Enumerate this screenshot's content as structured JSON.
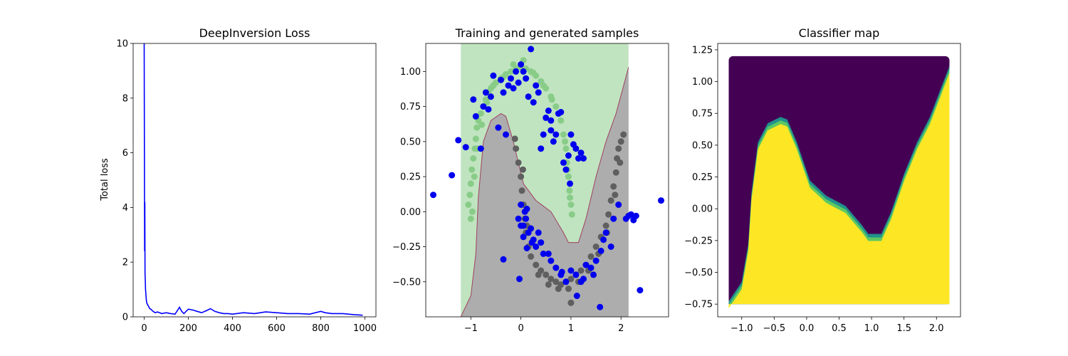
{
  "figure": {
    "background": "#ffffff"
  },
  "chart_data": [
    {
      "type": "line",
      "title": "DeepInversion Loss",
      "xlabel": "",
      "ylabel": "Total loss",
      "xlim": [
        -50,
        1050
      ],
      "ylim": [
        0,
        10
      ],
      "xticks": [
        0,
        200,
        400,
        600,
        800,
        1000
      ],
      "yticks": [
        0,
        2,
        4,
        6,
        8,
        10
      ],
      "grid": false,
      "color": "#0000ff",
      "series": [
        {
          "x": [
            0,
            1,
            2,
            3,
            4,
            5,
            6,
            8,
            10,
            12,
            15,
            20,
            25,
            30,
            40,
            50,
            60,
            80,
            100,
            120,
            140,
            160,
            170,
            180,
            200,
            220,
            240,
            260,
            280,
            300,
            320,
            340,
            360,
            380,
            400,
            450,
            500,
            550,
            600,
            650,
            700,
            750,
            800,
            820,
            850,
            900,
            950,
            990
          ],
          "y": [
            10,
            6.4,
            2.4,
            4.2,
            1.6,
            1.3,
            1.0,
            0.8,
            0.6,
            0.5,
            0.45,
            0.38,
            0.3,
            0.28,
            0.2,
            0.15,
            0.18,
            0.12,
            0.15,
            0.12,
            0.1,
            0.35,
            0.2,
            0.12,
            0.28,
            0.25,
            0.2,
            0.15,
            0.22,
            0.3,
            0.2,
            0.15,
            0.12,
            0.12,
            0.1,
            0.15,
            0.12,
            0.18,
            0.15,
            0.12,
            0.12,
            0.1,
            0.2,
            0.15,
            0.12,
            0.12,
            0.08,
            0.06
          ]
        }
      ]
    },
    {
      "type": "scatter",
      "title": "Training and generated samples",
      "xlabel": "",
      "ylabel": "",
      "xlim": [
        -1.9,
        2.95
      ],
      "ylim": [
        -0.75,
        1.2
      ],
      "xticks": [
        -1,
        0,
        1,
        2
      ],
      "yticks": [
        -0.5,
        -0.25,
        0.0,
        0.25,
        0.5,
        0.75,
        1.0
      ],
      "grid": false,
      "region": {
        "x_range": [
          -1.2,
          2.15
        ],
        "class0_color": "#c0e4c0",
        "class1_color": "#adadad",
        "boundary_color": "#a04060",
        "boundary": [
          [
            -1.2,
            -0.75
          ],
          [
            -1.0,
            -0.6
          ],
          [
            -0.9,
            -0.3
          ],
          [
            -0.85,
            0.1
          ],
          [
            -0.75,
            0.5
          ],
          [
            -0.6,
            0.65
          ],
          [
            -0.4,
            0.7
          ],
          [
            -0.3,
            0.68
          ],
          [
            -0.15,
            0.5
          ],
          [
            0.05,
            0.2
          ],
          [
            0.3,
            0.08
          ],
          [
            0.6,
            0.0
          ],
          [
            0.85,
            -0.15
          ],
          [
            0.95,
            -0.22
          ],
          [
            1.15,
            -0.22
          ],
          [
            1.3,
            -0.05
          ],
          [
            1.5,
            0.25
          ],
          [
            1.7,
            0.5
          ],
          [
            1.9,
            0.7
          ],
          [
            2.15,
            1.03
          ]
        ]
      },
      "series": [
        {
          "name": "",
          "color": "#88cc88",
          "points": [
            [
              -1.05,
              0.05
            ],
            [
              -1.02,
              0.12
            ],
            [
              -1.0,
              0.2
            ],
            [
              -0.98,
              0.3
            ],
            [
              -0.95,
              0.38
            ],
            [
              -0.92,
              0.45
            ],
            [
              -0.9,
              0.52
            ],
            [
              -0.88,
              0.6
            ],
            [
              -0.85,
              0.65
            ],
            [
              -0.8,
              0.7
            ],
            [
              -0.75,
              0.75
            ],
            [
              -0.7,
              0.8
            ],
            [
              -0.65,
              0.85
            ],
            [
              -0.6,
              0.88
            ],
            [
              -0.5,
              0.92
            ],
            [
              -0.4,
              0.95
            ],
            [
              -0.3,
              0.98
            ],
            [
              -0.2,
              1.0
            ],
            [
              -0.1,
              1.02
            ],
            [
              0.0,
              1.03
            ],
            [
              0.1,
              1.02
            ],
            [
              0.2,
              1.0
            ],
            [
              0.3,
              0.97
            ],
            [
              0.4,
              0.93
            ],
            [
              0.5,
              0.88
            ],
            [
              0.6,
              0.82
            ],
            [
              0.7,
              0.75
            ],
            [
              0.8,
              0.65
            ],
            [
              0.85,
              0.55
            ],
            [
              0.9,
              0.45
            ],
            [
              0.92,
              0.35
            ],
            [
              0.95,
              0.25
            ],
            [
              0.97,
              0.15
            ],
            [
              1.0,
              0.05
            ],
            [
              1.02,
              -0.02
            ],
            [
              -1.0,
              -0.05
            ],
            [
              -0.97,
              0.0
            ],
            [
              -0.93,
              0.25
            ],
            [
              -0.87,
              0.45
            ],
            [
              -0.78,
              0.62
            ],
            [
              -0.68,
              0.78
            ],
            [
              -0.55,
              0.9
            ],
            [
              -0.35,
              0.96
            ],
            [
              -0.15,
              1.05
            ],
            [
              0.05,
              1.08
            ],
            [
              0.25,
              0.99
            ],
            [
              0.45,
              0.9
            ],
            [
              0.62,
              0.8
            ],
            [
              0.75,
              0.7
            ],
            [
              0.88,
              0.5
            ],
            [
              0.93,
              0.3
            ],
            [
              0.98,
              0.1
            ]
          ]
        },
        {
          "name": "",
          "color": "#5f5f5f",
          "points": [
            [
              -0.1,
              0.45
            ],
            [
              -0.05,
              0.35
            ],
            [
              0.0,
              0.25
            ],
            [
              0.02,
              0.15
            ],
            [
              0.05,
              0.05
            ],
            [
              0.08,
              -0.05
            ],
            [
              0.1,
              -0.15
            ],
            [
              0.15,
              -0.25
            ],
            [
              0.2,
              -0.32
            ],
            [
              0.3,
              -0.38
            ],
            [
              0.4,
              -0.42
            ],
            [
              0.5,
              -0.45
            ],
            [
              0.6,
              -0.48
            ],
            [
              0.7,
              -0.5
            ],
            [
              0.8,
              -0.52
            ],
            [
              0.9,
              -0.5
            ],
            [
              1.0,
              -0.48
            ],
            [
              1.1,
              -0.45
            ],
            [
              1.2,
              -0.42
            ],
            [
              1.3,
              -0.38
            ],
            [
              1.4,
              -0.32
            ],
            [
              1.5,
              -0.25
            ],
            [
              1.6,
              -0.18
            ],
            [
              1.7,
              -0.1
            ],
            [
              1.75,
              -0.02
            ],
            [
              1.8,
              0.08
            ],
            [
              1.85,
              0.18
            ],
            [
              1.9,
              0.28
            ],
            [
              1.92,
              0.38
            ],
            [
              1.95,
              0.45
            ],
            [
              2.0,
              0.5
            ],
            [
              2.05,
              0.55
            ],
            [
              -0.12,
              0.52
            ],
            [
              0.04,
              0.3
            ],
            [
              0.12,
              -0.1
            ],
            [
              0.35,
              -0.45
            ],
            [
              0.55,
              -0.52
            ],
            [
              0.75,
              -0.55
            ],
            [
              0.95,
              -0.55
            ],
            [
              1.15,
              -0.5
            ],
            [
              1.35,
              -0.42
            ],
            [
              1.55,
              -0.3
            ],
            [
              1.72,
              -0.15
            ],
            [
              1.88,
              0.12
            ],
            [
              1.98,
              0.35
            ],
            [
              1.0,
              -0.65
            ]
          ]
        },
        {
          "name": "",
          "color": "#0000ee",
          "points": [
            [
              -1.75,
              0.12
            ],
            [
              -1.25,
              0.51
            ],
            [
              -1.1,
              0.46
            ],
            [
              -0.95,
              0.8
            ],
            [
              -0.9,
              0.68
            ],
            [
              -0.8,
              0.45
            ],
            [
              -0.75,
              0.75
            ],
            [
              -0.7,
              0.85
            ],
            [
              -0.6,
              0.82
            ],
            [
              -0.55,
              0.97
            ],
            [
              -0.45,
              0.6
            ],
            [
              -0.4,
              0.94
            ],
            [
              -0.35,
              0.85
            ],
            [
              -0.3,
              0.55
            ],
            [
              -0.25,
              0.9
            ],
            [
              -0.2,
              0.95
            ],
            [
              -0.15,
              0.88
            ],
            [
              -0.1,
              1.0
            ],
            [
              -0.05,
              0.92
            ],
            [
              0.0,
              1.05
            ],
            [
              0.05,
              1.0
            ],
            [
              0.1,
              0.95
            ],
            [
              0.15,
              0.82
            ],
            [
              0.2,
              1.16
            ],
            [
              0.25,
              0.78
            ],
            [
              0.3,
              0.9
            ],
            [
              0.35,
              0.85
            ],
            [
              0.4,
              0.45
            ],
            [
              0.45,
              0.55
            ],
            [
              0.5,
              0.67
            ],
            [
              0.55,
              0.72
            ],
            [
              0.6,
              0.65
            ],
            [
              0.65,
              0.5
            ],
            [
              0.7,
              0.55
            ],
            [
              0.75,
              0.7
            ],
            [
              0.8,
              0.71
            ],
            [
              0.85,
              0.35
            ],
            [
              0.9,
              0.3
            ],
            [
              0.95,
              0.4
            ],
            [
              1.0,
              0.55
            ],
            [
              1.05,
              0.48
            ],
            [
              1.1,
              0.45
            ],
            [
              1.15,
              0.38
            ],
            [
              1.2,
              0.42
            ],
            [
              1.25,
              0.38
            ],
            [
              -1.38,
              0.26
            ],
            [
              -0.35,
              -0.34
            ],
            [
              -0.03,
              -0.48
            ],
            [
              -0.05,
              -0.05
            ],
            [
              0.0,
              0.05
            ],
            [
              0.05,
              -0.1
            ],
            [
              0.1,
              -0.05
            ],
            [
              0.12,
              0.02
            ],
            [
              0.15,
              -0.15
            ],
            [
              0.2,
              -0.12
            ],
            [
              0.25,
              -0.2
            ],
            [
              0.3,
              -0.25
            ],
            [
              0.4,
              -0.22
            ],
            [
              0.45,
              -0.3
            ],
            [
              0.55,
              -0.3
            ],
            [
              0.6,
              -0.35
            ],
            [
              0.7,
              -0.4
            ],
            [
              0.8,
              -0.45
            ],
            [
              0.9,
              -0.5
            ],
            [
              1.0,
              -0.42
            ],
            [
              1.1,
              -0.45
            ],
            [
              1.2,
              -0.5
            ],
            [
              1.3,
              -0.38
            ],
            [
              1.4,
              -0.4
            ],
            [
              1.5,
              -0.35
            ],
            [
              1.6,
              -0.28
            ],
            [
              1.7,
              -0.15
            ],
            [
              1.8,
              -0.25
            ],
            [
              1.85,
              -0.05
            ],
            [
              1.95,
              0.05
            ],
            [
              2.1,
              -0.05
            ],
            [
              2.15,
              -0.03
            ],
            [
              2.2,
              -0.02
            ],
            [
              2.25,
              -0.06
            ],
            [
              2.3,
              -0.03
            ],
            [
              2.38,
              -0.56
            ],
            [
              1.58,
              -0.68
            ],
            [
              2.8,
              0.08
            ],
            [
              0.0,
              -0.1
            ],
            [
              0.05,
              -0.18
            ],
            [
              0.08,
              0.0
            ],
            [
              0.12,
              -0.26
            ],
            [
              0.35,
              -0.15
            ],
            [
              0.22,
              -0.22
            ],
            [
              0.82,
              -0.43
            ],
            [
              1.12,
              -0.6
            ],
            [
              1.25,
              -0.48
            ],
            [
              1.45,
              -0.45
            ],
            [
              1.65,
              -0.2
            ],
            [
              0.98,
              0.2
            ],
            [
              0.6,
              0.58
            ],
            [
              -0.65,
              0.73
            ]
          ]
        }
      ]
    },
    {
      "type": "heatmap",
      "title": "Classifier map",
      "xlabel": "",
      "ylabel": "",
      "xlim": [
        -1.37,
        2.37
      ],
      "ylim": [
        -0.85,
        1.3
      ],
      "xticks": [
        -1.0,
        -0.5,
        0.0,
        0.5,
        1.0,
        1.5,
        2.0
      ],
      "yticks": [
        -0.75,
        -0.5,
        -0.25,
        0.0,
        0.25,
        0.5,
        0.75,
        1.0,
        1.25
      ],
      "grid": false,
      "data_range": {
        "x": [
          -1.2,
          2.2
        ],
        "y": [
          -0.75,
          1.2
        ]
      },
      "colors": {
        "class0": "#440154",
        "mid1": "#21918c",
        "mid2": "#5ec962",
        "class1": "#fde725"
      },
      "boundary": [
        [
          -1.2,
          -0.75
        ],
        [
          -1.0,
          -0.6
        ],
        [
          -0.9,
          -0.3
        ],
        [
          -0.85,
          0.1
        ],
        [
          -0.75,
          0.5
        ],
        [
          -0.6,
          0.65
        ],
        [
          -0.4,
          0.7
        ],
        [
          -0.3,
          0.68
        ],
        [
          -0.15,
          0.5
        ],
        [
          0.05,
          0.2
        ],
        [
          0.3,
          0.08
        ],
        [
          0.6,
          0.0
        ],
        [
          0.85,
          -0.15
        ],
        [
          0.95,
          -0.22
        ],
        [
          1.15,
          -0.22
        ],
        [
          1.3,
          -0.05
        ],
        [
          1.5,
          0.25
        ],
        [
          1.7,
          0.5
        ],
        [
          1.9,
          0.7
        ],
        [
          2.2,
          1.1
        ]
      ]
    }
  ]
}
